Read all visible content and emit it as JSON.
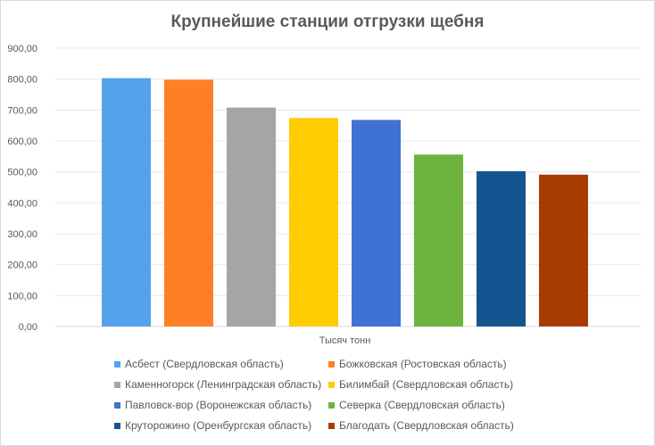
{
  "chart_data": {
    "type": "bar",
    "title": "Крупнейшие станции отгрузки щебня",
    "xlabel": "Тысяч тонн",
    "ylabel": "",
    "ylim": [
      0,
      900
    ],
    "ytick_step": 100,
    "ytick_labels": [
      "0,00",
      "100,00",
      "200,00",
      "300,00",
      "400,00",
      "500,00",
      "600,00",
      "700,00",
      "800,00",
      "900,00"
    ],
    "grid": true,
    "legend_position": "bottom",
    "series": [
      {
        "name": "Асбест (Свердловская область)",
        "value": 803,
        "color": "#55a2ea"
      },
      {
        "name": "Божковская (Ростовская область)",
        "value": 798,
        "color": "#ff7f27"
      },
      {
        "name": "Каменногорск (Ленинградская область)",
        "value": 708,
        "color": "#a5a5a5"
      },
      {
        "name": "Билимбай (Свердловская область)",
        "value": 674,
        "color": "#ffcc00"
      },
      {
        "name": "Павловск-вор (Воронежская область)",
        "value": 668,
        "color": "#3f72d3"
      },
      {
        "name": "Северка (Свердловская область)",
        "value": 556,
        "color": "#6db33f"
      },
      {
        "name": "Круторожино (Оренбургская область)",
        "value": 502,
        "color": "#145591"
      },
      {
        "name": "Благодать (Свердловская область)",
        "value": 491,
        "color": "#a83c00"
      }
    ]
  }
}
